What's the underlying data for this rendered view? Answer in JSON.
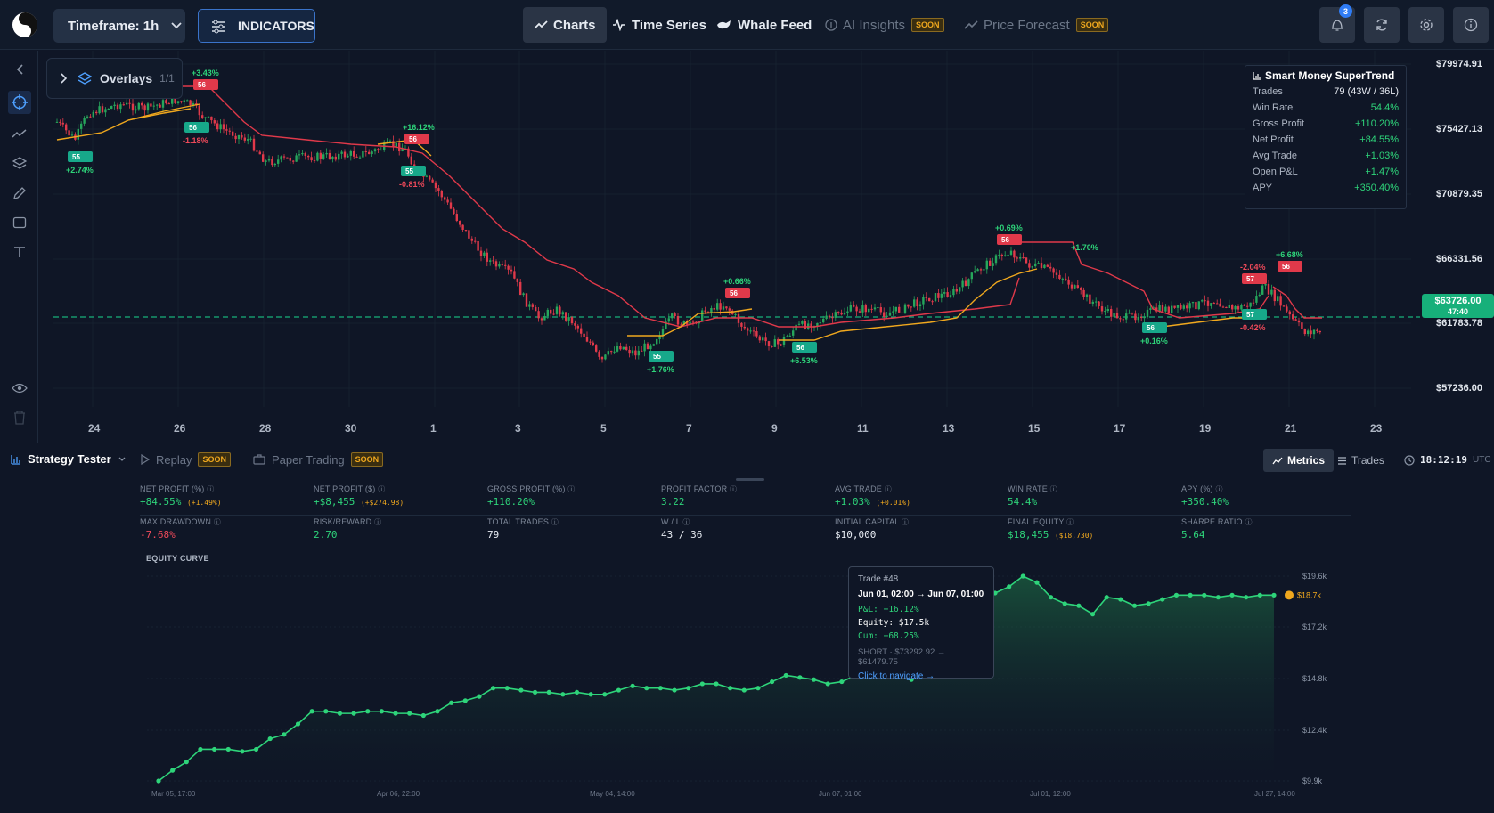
{
  "topbar": {
    "timeframe_label": "Timeframe: 1h",
    "indicators_label": "INDICATORS",
    "nav": [
      {
        "label": "Charts"
      },
      {
        "label": "Time Series"
      },
      {
        "label": "Whale Feed"
      },
      {
        "label": "AI Insights",
        "badge": "SOON"
      },
      {
        "label": "Price Forecast",
        "badge": "SOON"
      }
    ],
    "notification_count": "3"
  },
  "overlays": {
    "label": "Overlays",
    "count": "1/1"
  },
  "indicator_panel": {
    "title": "Smart Money SuperTrend",
    "rows": [
      {
        "label": "Trades",
        "value": "79 (43W / 36L)"
      },
      {
        "label": "Win Rate",
        "value": "54.4%"
      },
      {
        "label": "Gross Profit",
        "value": "+110.20%"
      },
      {
        "label": "Net Profit",
        "value": "+84.55%"
      },
      {
        "label": "Avg Trade",
        "value": "+1.03%"
      },
      {
        "label": "Open P&L",
        "value": "+1.47%"
      },
      {
        "label": "APY",
        "value": "+350.40%"
      }
    ]
  },
  "price_axis": [
    "$79974.91",
    "$75427.13",
    "$70879.35",
    "$66331.56",
    "$61783.78",
    "$57236.00"
  ],
  "current_price": {
    "price": "$63726.00",
    "countdown": "47:40"
  },
  "date_axis": [
    "24",
    "26",
    "28",
    "30",
    "1",
    "3",
    "5",
    "7",
    "9",
    "11",
    "13",
    "15",
    "17",
    "19",
    "21",
    "23"
  ],
  "trade_markers": [
    {
      "text": "55",
      "pct": "+2.74%"
    },
    {
      "text": "56",
      "pct": "+3.43%"
    },
    {
      "text": "56",
      "pct": "-1.18%"
    },
    {
      "text": "56",
      "pct": "+16.12%"
    },
    {
      "text": "55",
      "pct": "-0.81%"
    },
    {
      "text": "55",
      "pct": "+1.76%"
    },
    {
      "text": "56",
      "pct": "+0.66%"
    },
    {
      "text": "56",
      "pct": "+6.53%"
    },
    {
      "text": "56",
      "pct": "+0.69%"
    },
    {
      "text": "",
      "pct": "+1.70%"
    },
    {
      "text": "56",
      "pct": "+0.16%"
    },
    {
      "text": "57",
      "pct": "-2.04%"
    },
    {
      "text": "56",
      "pct": "+6.68%"
    },
    {
      "text": "57",
      "pct": "-0.42%"
    }
  ],
  "strategy_bar": {
    "strategy_tester": "Strategy Tester",
    "replay": "Replay",
    "paper_trading": "Paper Trading",
    "soon": "SOON",
    "metrics_tab": "Metrics",
    "trades_tab": "Trades",
    "clock": "18:12:19",
    "tz": "UTC"
  },
  "metrics": [
    {
      "label": "NET PROFIT (%)",
      "value": "+84.55%",
      "sub": "(+1.49%)",
      "color": "g"
    },
    {
      "label": "NET PROFIT ($)",
      "value": "+$8,455",
      "sub": "(+$274.98)",
      "color": "g"
    },
    {
      "label": "GROSS PROFIT (%)",
      "value": "+110.20%",
      "sub": "",
      "color": "g"
    },
    {
      "label": "PROFIT FACTOR",
      "value": "3.22",
      "sub": "",
      "color": "g"
    },
    {
      "label": "AVG TRADE",
      "value": "+1.03%",
      "sub": "(+0.01%)",
      "color": "g"
    },
    {
      "label": "WIN RATE",
      "value": "54.4%",
      "sub": "",
      "color": "g"
    },
    {
      "label": "APY (%)",
      "value": "+350.40%",
      "sub": "",
      "color": "g"
    },
    {
      "label": "MAX DRAWDOWN",
      "value": "-7.68%",
      "sub": "",
      "color": "r"
    },
    {
      "label": "RISK/REWARD",
      "value": "2.70",
      "sub": "",
      "color": "g"
    },
    {
      "label": "TOTAL TRADES",
      "value": "79",
      "sub": "",
      "color": "w"
    },
    {
      "label": "W / L",
      "value": "43 / 36",
      "sub": "",
      "color": "w"
    },
    {
      "label": "INITIAL CAPITAL",
      "value": "$10,000",
      "sub": "",
      "color": "w"
    },
    {
      "label": "FINAL EQUITY",
      "value": "$18,455",
      "sub": "($18,730)",
      "color": "g"
    },
    {
      "label": "SHARPE RATIO",
      "value": "5.64",
      "sub": "",
      "color": "g"
    }
  ],
  "equity": {
    "title": "EQUITY CURVE",
    "y_ticks": [
      "$19.6k",
      "$17.2k",
      "$14.8k",
      "$12.4k",
      "$9.9k"
    ],
    "x_ticks": [
      "Mar 05, 17:00",
      "Apr 06, 22:00",
      "May 04, 14:00",
      "Jun 07, 01:00",
      "Jul 01, 12:00",
      "Jul 27, 14:00"
    ],
    "last_label": "$18.7k",
    "values": [
      9.9,
      10.4,
      10.8,
      11.4,
      11.4,
      11.4,
      11.3,
      11.4,
      11.9,
      12.1,
      12.6,
      13.2,
      13.2,
      13.1,
      13.1,
      13.2,
      13.2,
      13.1,
      13.1,
      13.0,
      13.2,
      13.6,
      13.7,
      13.9,
      14.3,
      14.3,
      14.2,
      14.1,
      14.1,
      14.0,
      14.1,
      14.0,
      14.0,
      14.2,
      14.4,
      14.3,
      14.3,
      14.2,
      14.3,
      14.5,
      14.5,
      14.3,
      14.2,
      14.3,
      14.6,
      14.9,
      14.8,
      14.7,
      14.5,
      14.6,
      14.9,
      15.1,
      15.0,
      14.9,
      14.7,
      15.1,
      14.9,
      17.5,
      17.8,
      18.4,
      18.8,
      19.1,
      19.6,
      19.3,
      18.6,
      18.3,
      18.2,
      17.8,
      18.6,
      18.5,
      18.2,
      18.3,
      18.5,
      18.7,
      18.7,
      18.7,
      18.6,
      18.7,
      18.6,
      18.7,
      18.7
    ],
    "tooltip": {
      "title": "Trade #48",
      "range": "Jun 01, 02:00 → Jun 07, 01:00",
      "pnl": "P&L: +16.12%",
      "equity": "Equity: $17.5k",
      "cum": "Cum: +68.25%",
      "detail": "SHORT · $73292.92 → $61479.75",
      "link": "Click to navigate →"
    }
  },
  "chart_data": {
    "type": "line",
    "title": "EQUITY CURVE",
    "ylim": [
      9.9,
      19.6
    ]
  }
}
